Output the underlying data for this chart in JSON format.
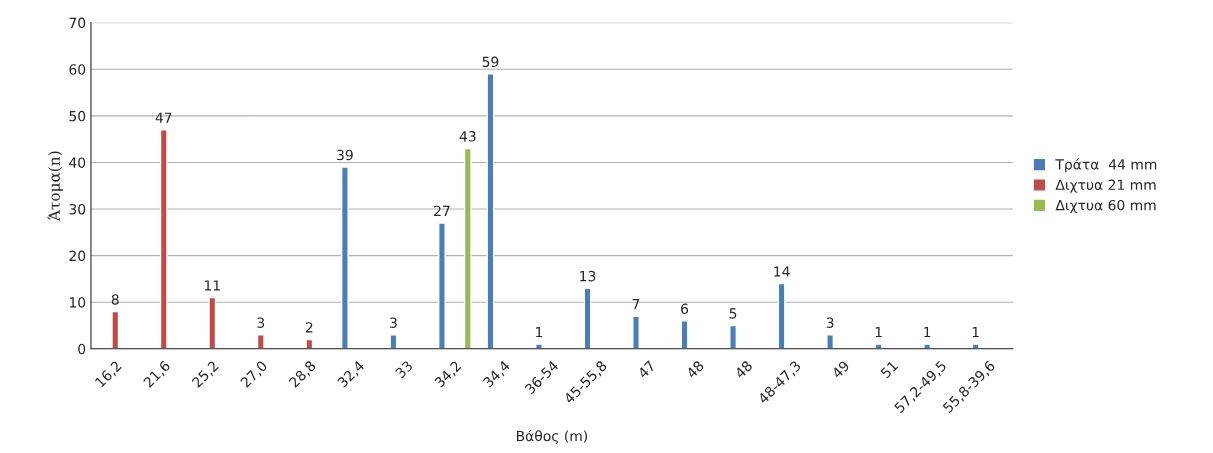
{
  "chart_data": {
    "type": "bar",
    "xlabel": "Βάθος (m)",
    "ylabel": "Άτομα(n)",
    "categories": [
      "16,2",
      "21,6",
      "25,2",
      "27,0",
      "28,8",
      "32,4",
      "33",
      "34,2",
      "34,4",
      "36-54",
      "45-55,8",
      "47",
      "48",
      "48",
      "48-47,3",
      "49",
      "51",
      "57,2-49,5",
      "55,8-39,6"
    ],
    "series": [
      {
        "name": "Τράτα  44 mm",
        "color": "#4a7ebb",
        "values": [
          null,
          null,
          null,
          null,
          null,
          39,
          3,
          27,
          59,
          1,
          13,
          7,
          6,
          5,
          14,
          3,
          1,
          1,
          1
        ]
      },
      {
        "name": "Διχτυα 21 mm",
        "color": "#be4b48",
        "values": [
          8,
          47,
          11,
          3,
          2,
          null,
          null,
          null,
          null,
          null,
          null,
          null,
          null,
          null,
          null,
          null,
          null,
          null,
          null
        ]
      },
      {
        "name": "Διχτυα 60 mm",
        "color": "#98b954",
        "values": [
          null,
          null,
          null,
          null,
          null,
          null,
          null,
          43,
          null,
          null,
          null,
          null,
          null,
          null,
          null,
          null,
          null,
          null,
          null
        ]
      }
    ],
    "ylim": [
      0,
      70
    ],
    "yticks": [
      0,
      10,
      20,
      30,
      40,
      50,
      60,
      70
    ],
    "grid": "y",
    "legend": "right",
    "data_labels": true
  }
}
